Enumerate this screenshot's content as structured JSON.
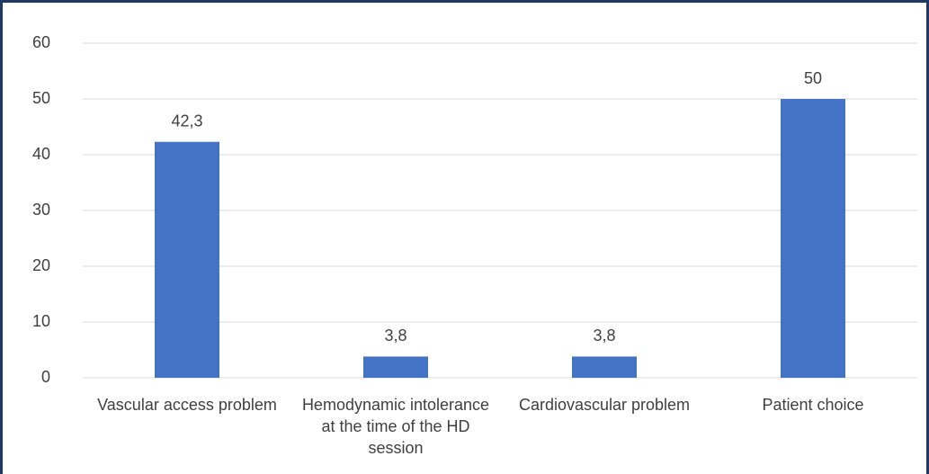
{
  "chart_data": {
    "type": "bar",
    "categories": [
      "Vascular access problem",
      "Hemodynamic intolerance at the time of the HD session",
      "Cardiovascular problem",
      "Patient choice"
    ],
    "values": [
      42.3,
      3.8,
      3.8,
      50
    ],
    "value_labels": [
      "42,3",
      "3,8",
      "3,8",
      "50"
    ],
    "color": "#4472c4",
    "ylim": [
      0,
      60
    ],
    "yticks": [
      0,
      10,
      20,
      30,
      40,
      50,
      60
    ],
    "grid": true
  }
}
